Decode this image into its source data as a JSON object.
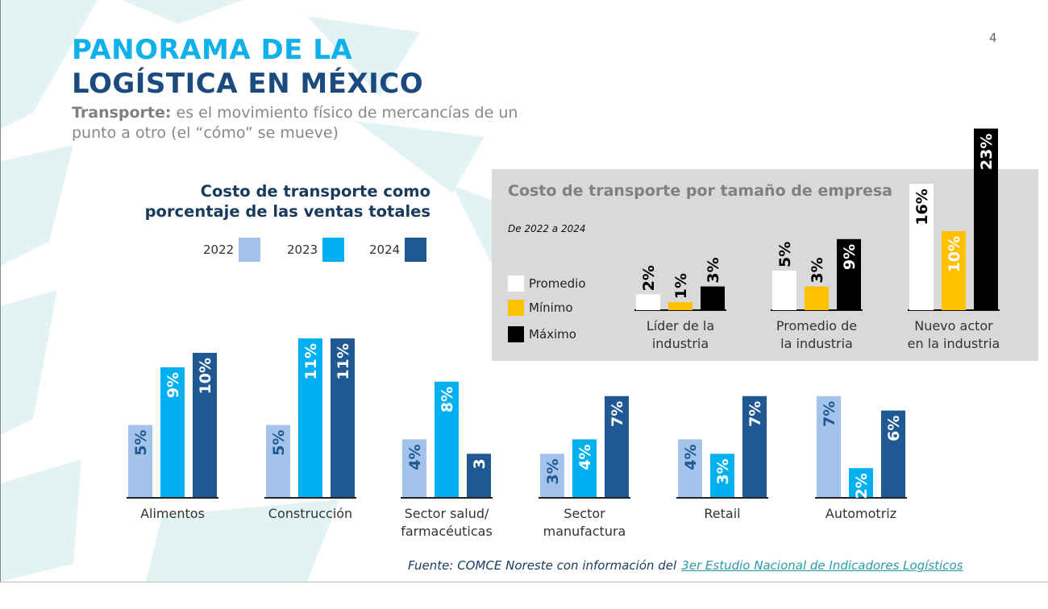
{
  "page": {
    "number": "4",
    "title_line1": "PANORAMA DE LA",
    "title_line2": "LOGÍSTICA EN MÉXICO",
    "subtitle_bold": "Transporte:",
    "subtitle_rest": " es el movimiento físico de mercancías de un punto a otro (el “cómo” se mueve)",
    "source_prefix": "Fuente: COMCE Noreste con información del",
    "source_link": "3er Estudio Nacional de Indicadores Logísticos"
  },
  "colors": {
    "title_light": "#10b0e8",
    "title_dark": "#1a4a7e",
    "y2022": "#a4c3ea",
    "y2023": "#00b0f0",
    "y2024": "#1f5893",
    "promedio": "#ffffff",
    "minimo": "#ffc000",
    "maximo": "#000000",
    "panel": "#d9d9d9"
  },
  "chart_data": [
    {
      "type": "bar",
      "title": "Costo de transporte como porcentaje de las ventas totales",
      "legend_placement": "top-right",
      "categories": [
        "Alimentos",
        "Construcción",
        "Sector salud/ farmacéuticas",
        "Sector manufactura",
        "Retail",
        "Automotriz"
      ],
      "category_lines": [
        [
          "Alimentos"
        ],
        [
          "Construcción"
        ],
        [
          "Sector salud/",
          "farmacéuticas"
        ],
        [
          "Sector",
          "manufactura"
        ],
        [
          "Retail"
        ],
        [
          "Automotriz"
        ]
      ],
      "series": [
        {
          "name": "2022",
          "values": [
            5,
            5,
            4,
            3,
            4,
            7
          ],
          "labels": [
            "5%",
            "5%",
            "4%",
            "3%",
            "4%",
            "7%"
          ]
        },
        {
          "name": "2023",
          "values": [
            9,
            11,
            8,
            4,
            3,
            2
          ],
          "labels": [
            "9%",
            "11%",
            "8%",
            "4%",
            "3%",
            "2%"
          ]
        },
        {
          "name": "2024",
          "values": [
            10,
            11,
            3,
            7,
            7,
            6
          ],
          "labels": [
            "10%",
            "11%",
            "3",
            "7%",
            "7%",
            "6%"
          ]
        }
      ],
      "unit": "%",
      "xlabel": "",
      "ylabel": "",
      "grid": false
    },
    {
      "type": "bar",
      "title": "Costo de transporte por tamaño de empresa",
      "subtitle": "De 2022 a 2024",
      "legend_placement": "left",
      "categories": [
        "Líder de la industria",
        "Promedio de la industria",
        "Nuevo actor en la industria"
      ],
      "category_lines": [
        [
          "Líder de la",
          "industria"
        ],
        [
          "Promedio de",
          "la industria"
        ],
        [
          "Nuevo actor",
          "en la industria"
        ]
      ],
      "series": [
        {
          "name": "Promedio",
          "values": [
            2,
            5,
            16
          ],
          "labels": [
            "2%",
            "5%",
            "16%"
          ]
        },
        {
          "name": "Mínimo",
          "values": [
            1,
            3,
            10
          ],
          "labels": [
            "1%",
            "3%",
            "10%"
          ]
        },
        {
          "name": "Máximo",
          "values": [
            3,
            9,
            23
          ],
          "labels": [
            "3%",
            "9%",
            "23%"
          ]
        }
      ],
      "unit": "%",
      "xlabel": "",
      "ylabel": "",
      "grid": false
    }
  ]
}
